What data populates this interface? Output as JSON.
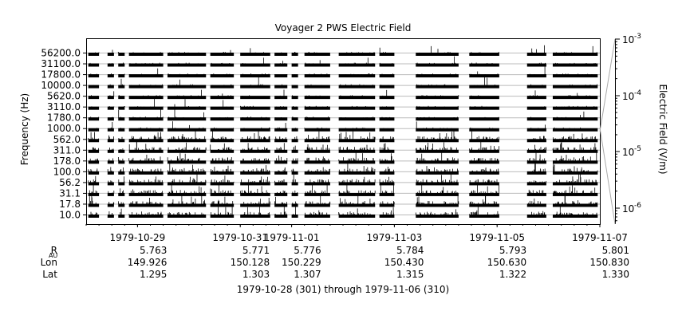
{
  "chart_data": {
    "type": "line",
    "title": "Voyager 2 PWS Electric Field",
    "ylabel": "Frequency (Hz)",
    "y2label": "Electric Field (V/m)",
    "xlabel": "1979-10-28 (301) through 1979-11-06 (310)",
    "channels": [
      "56200.0",
      "31100.0",
      "17800.0",
      "10000.0",
      "5620.0",
      "3110.0",
      "1780.0",
      "1000.0",
      "562.0",
      "311.0",
      "178.0",
      "100.0",
      "56.2",
      "31.1",
      "17.8",
      "10.0"
    ],
    "x_ticks": [
      {
        "label": "1979-10-29",
        "value": "1979-10-29"
      },
      {
        "label": "1979-10-31",
        "value": "1979-10-31"
      },
      {
        "label": "1979-11-01",
        "value": "1979-11-01"
      },
      {
        "label": "1979-11-03",
        "value": "1979-11-03"
      },
      {
        "label": "1979-11-05",
        "value": "1979-11-05"
      },
      {
        "label": "1979-11-07",
        "value": "1979-11-07"
      }
    ],
    "xlim": [
      "1979-10-28",
      "1979-11-07"
    ],
    "colorbar": {
      "scale": "log",
      "ticks": [
        {
          "base": "10",
          "exp": "-3"
        },
        {
          "base": "10",
          "exp": "-4"
        },
        {
          "base": "10",
          "exp": "-5"
        },
        {
          "base": "10",
          "exp": "-6"
        }
      ]
    },
    "ephemeris": {
      "rows": [
        {
          "label": "R",
          "sub": "AU",
          "values": [
            "5.763",
            "5.771",
            "5.776",
            "5.784",
            "5.793",
            "5.801"
          ]
        },
        {
          "label": "Lon",
          "values": [
            "149.926",
            "150.128",
            "150.229",
            "150.430",
            "150.630",
            "150.830"
          ]
        },
        {
          "label": "Lat",
          "values": [
            "1.295",
            "1.303",
            "1.307",
            "1.315",
            "1.322",
            "1.330"
          ]
        }
      ]
    },
    "data_segments": [
      [
        "1979-10-28T01:00",
        "1979-10-28T06:00"
      ],
      [
        "1979-10-28T10:00",
        "1979-10-28T13:00"
      ],
      [
        "1979-10-28T15:00",
        "1979-10-28T18:00"
      ],
      [
        "1979-10-28T20:00",
        "1979-10-29T12:00"
      ],
      [
        "1979-10-29T14:00",
        "1979-10-30T08:00"
      ],
      [
        "1979-10-30T10:00",
        "1979-10-30T21:00"
      ],
      [
        "1979-10-31T00:00",
        "1979-10-31T14:00"
      ],
      [
        "1979-10-31T16:00",
        "1979-10-31T22:00"
      ],
      [
        "1979-11-01T00:00",
        "1979-11-01T03:00"
      ],
      [
        "1979-11-01T06:00",
        "1979-11-01T18:00"
      ],
      [
        "1979-11-01T22:00",
        "1979-11-02T15:00"
      ],
      [
        "1979-11-02T17:00",
        "1979-11-03T00:00"
      ],
      [
        "1979-11-03T10:00",
        "1979-11-04T06:00"
      ],
      [
        "1979-11-04T11:00",
        "1979-11-05T01:00"
      ],
      [
        "1979-11-05T14:00",
        "1979-11-05T23:00"
      ],
      [
        "1979-11-06T02:00",
        "1979-11-06T23:00"
      ]
    ]
  }
}
